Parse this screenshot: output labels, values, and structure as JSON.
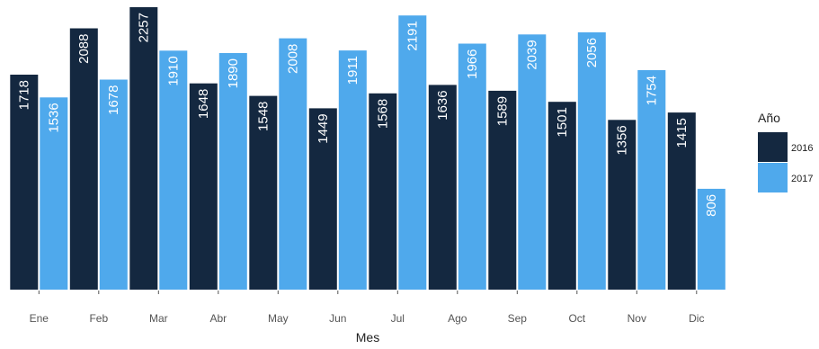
{
  "colors": {
    "2016": "#142840",
    "2017": "#4fa9ec",
    "tick": "#555555"
  },
  "chart_data": {
    "type": "bar",
    "categories": [
      "Ene",
      "Feb",
      "Mar",
      "Abr",
      "May",
      "Jun",
      "Jul",
      "Ago",
      "Sep",
      "Oct",
      "Nov",
      "Dic"
    ],
    "series": [
      {
        "name": "2016",
        "values": [
          1718,
          2088,
          2257,
          1648,
          1548,
          1449,
          1568,
          1636,
          1589,
          1501,
          1356,
          1415
        ]
      },
      {
        "name": "2017",
        "values": [
          1536,
          1678,
          1910,
          1890,
          2008,
          1911,
          2191,
          1966,
          2039,
          2056,
          1754,
          806
        ]
      }
    ],
    "title": "",
    "xlabel": "Mes",
    "ylabel": "",
    "ylim": [
      0,
      2300
    ],
    "grid": false,
    "legend": {
      "title": "Año",
      "position": "right"
    }
  }
}
